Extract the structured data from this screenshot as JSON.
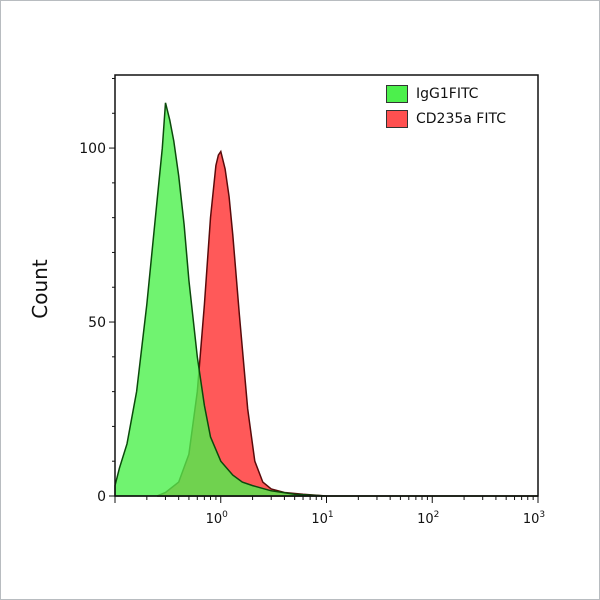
{
  "chart_data": {
    "type": "area",
    "title": "",
    "xlabel": "",
    "ylabel": "Count",
    "x_scale": "log",
    "xlim": [
      0.1,
      1000
    ],
    "ylim": [
      0,
      121
    ],
    "x_ticks": [
      {
        "base": "10",
        "exp": "0",
        "value": 1
      },
      {
        "base": "10",
        "exp": "1",
        "value": 10
      },
      {
        "base": "10",
        "exp": "2",
        "value": 100
      },
      {
        "base": "10",
        "exp": "3",
        "value": 1000
      }
    ],
    "y_ticks": [
      "0",
      "50",
      "100"
    ],
    "y_tick_values": [
      0,
      50,
      100
    ],
    "grid": false,
    "legend_position": "top-right",
    "series": [
      {
        "name": "IgG1FITC",
        "color": "#4cf04c",
        "edge": "#0b4a0b",
        "x": [
          0.1,
          0.11,
          0.13,
          0.16,
          0.2,
          0.25,
          0.28,
          0.3,
          0.33,
          0.36,
          0.4,
          0.45,
          0.5,
          0.6,
          0.7,
          0.8,
          1.0,
          1.3,
          1.6,
          2.0,
          3.0,
          5.0,
          10,
          1000
        ],
        "y": [
          3,
          8,
          15,
          30,
          55,
          85,
          100,
          113,
          108,
          102,
          92,
          78,
          62,
          40,
          26,
          17,
          10,
          6,
          4,
          3,
          1.5,
          0.5,
          0,
          0
        ]
      },
      {
        "name": "CD235a FITC",
        "color": "#ff5050",
        "edge": "#5a0a0a",
        "x": [
          0.25,
          0.3,
          0.4,
          0.5,
          0.6,
          0.7,
          0.8,
          0.9,
          0.95,
          1.0,
          1.1,
          1.2,
          1.3,
          1.5,
          1.8,
          2.1,
          2.5,
          3.0,
          4.0,
          6.0,
          10,
          1000
        ],
        "y": [
          0,
          1,
          4,
          12,
          30,
          55,
          80,
          95,
          98,
          99,
          94,
          86,
          75,
          52,
          25,
          10,
          4,
          2,
          1,
          0.5,
          0,
          0
        ]
      }
    ]
  }
}
